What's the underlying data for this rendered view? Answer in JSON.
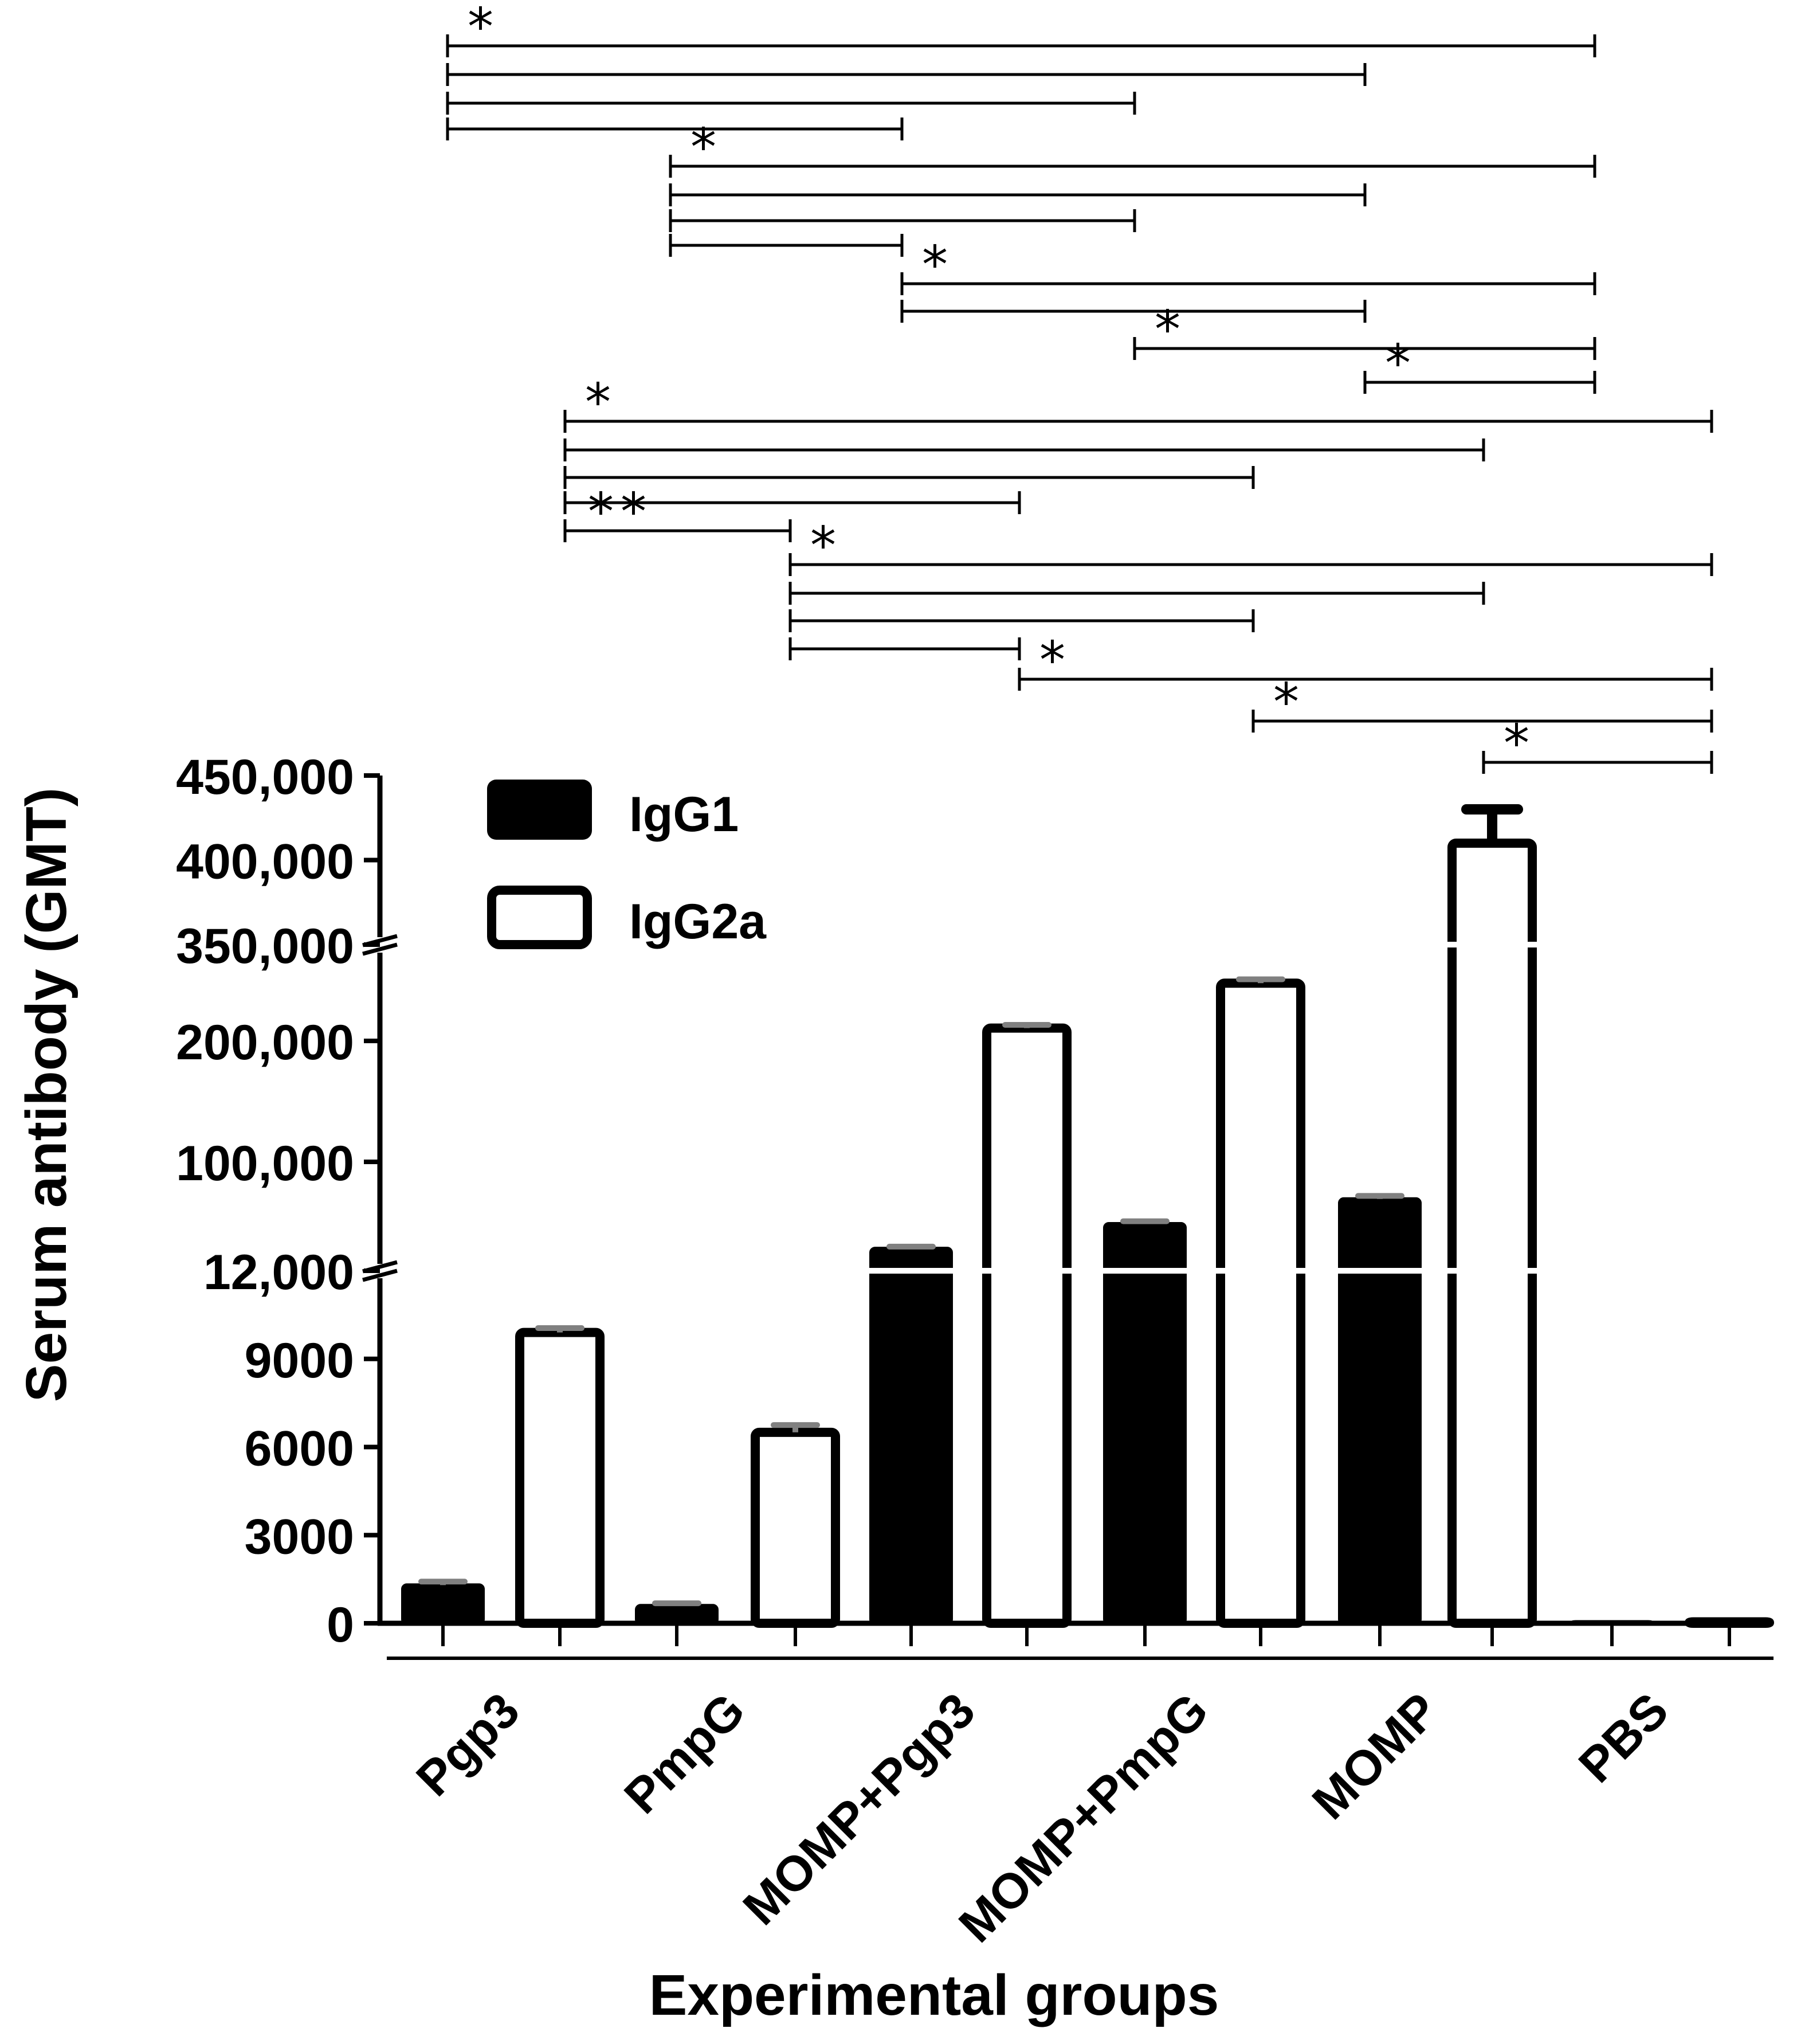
{
  "chart_data": {
    "type": "bar",
    "xlabel": "Experimental groups",
    "ylabel": "Serum antibody (GMT)",
    "categories": [
      "Pgp3",
      "PmpG",
      "MOMP+Pgp3",
      "MOMP+PmpG",
      "MOMP",
      "PBS"
    ],
    "series": [
      {
        "name": "IgG1",
        "fill": "#000000",
        "values": [
          1300,
          600,
          30000,
          50000,
          70000,
          50
        ],
        "errors": [
          120,
          80,
          1500,
          2000,
          2500,
          0
        ]
      },
      {
        "name": "IgG2a",
        "fill": "#ffffff",
        "values": [
          9900,
          6500,
          220000,
          290000,
          410000,
          50
        ],
        "errors": [
          150,
          250,
          5000,
          6000,
          20000,
          0
        ]
      }
    ],
    "axis_segments": [
      {
        "ticks": [
          "0",
          "3000",
          "6000",
          "9000",
          "12,000"
        ],
        "range": [
          0,
          12000
        ]
      },
      {
        "ticks": [
          "12,000",
          "100,000",
          "200,000",
          "350,000"
        ],
        "range": [
          12000,
          350000
        ],
        "irregular": true
      },
      {
        "ticks": [
          "350,000",
          "400,000",
          "450,000"
        ],
        "range": [
          350000,
          450000
        ]
      }
    ],
    "axis_breaks": [
      12000,
      350000
    ],
    "legend": {
      "position": "top-left",
      "entries": [
        "IgG1",
        "IgG2a"
      ]
    },
    "significance_marker": "*",
    "significance_marker_double": "**",
    "significance_brackets": {
      "IgG1": [
        {
          "from": "Pgp3",
          "to": "PBS",
          "label": "*"
        },
        {
          "from": "Pgp3",
          "to": "MOMP",
          "label": ""
        },
        {
          "from": "Pgp3",
          "to": "MOMP+PmpG",
          "label": ""
        },
        {
          "from": "Pgp3",
          "to": "MOMP+Pgp3",
          "label": ""
        },
        {
          "from": "PmpG",
          "to": "PBS",
          "label": "*"
        },
        {
          "from": "PmpG",
          "to": "MOMP",
          "label": ""
        },
        {
          "from": "PmpG",
          "to": "MOMP+PmpG",
          "label": ""
        },
        {
          "from": "PmpG",
          "to": "MOMP+Pgp3",
          "label": ""
        },
        {
          "from": "MOMP+Pgp3",
          "to": "PBS",
          "label": "*"
        },
        {
          "from": "MOMP+Pgp3",
          "to": "MOMP",
          "label": ""
        },
        {
          "from": "MOMP+PmpG",
          "to": "PBS",
          "label": "*"
        },
        {
          "from": "MOMP",
          "to": "PBS",
          "label": "*"
        }
      ],
      "IgG2a": [
        {
          "from": "Pgp3",
          "to": "PBS",
          "label": "*"
        },
        {
          "from": "Pgp3",
          "to": "MOMP",
          "label": ""
        },
        {
          "from": "Pgp3",
          "to": "MOMP+PmpG",
          "label": ""
        },
        {
          "from": "Pgp3",
          "to": "MOMP+Pgp3",
          "label": ""
        },
        {
          "from": "Pgp3",
          "to": "PmpG",
          "label": "**"
        },
        {
          "from": "PmpG",
          "to": "PBS",
          "label": "*"
        },
        {
          "from": "PmpG",
          "to": "MOMP",
          "label": ""
        },
        {
          "from": "PmpG",
          "to": "MOMP+PmpG",
          "label": ""
        },
        {
          "from": "PmpG",
          "to": "MOMP+Pgp3",
          "label": ""
        },
        {
          "from": "MOMP+Pgp3",
          "to": "PBS",
          "label": "*"
        },
        {
          "from": "MOMP+PmpG",
          "to": "PBS",
          "label": "*"
        },
        {
          "from": "MOMP",
          "to": "PBS",
          "label": "*"
        }
      ]
    }
  }
}
